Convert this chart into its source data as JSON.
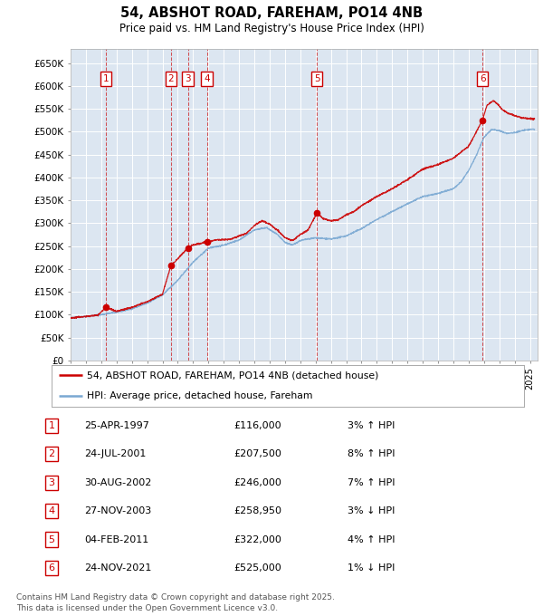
{
  "title": "54, ABSHOT ROAD, FAREHAM, PO14 4NB",
  "subtitle": "Price paid vs. HM Land Registry's House Price Index (HPI)",
  "ylabel_ticks": [
    "£0",
    "£50K",
    "£100K",
    "£150K",
    "£200K",
    "£250K",
    "£300K",
    "£350K",
    "£400K",
    "£450K",
    "£500K",
    "£550K",
    "£600K",
    "£650K"
  ],
  "ytick_values": [
    0,
    50000,
    100000,
    150000,
    200000,
    250000,
    300000,
    350000,
    400000,
    450000,
    500000,
    550000,
    600000,
    650000
  ],
  "ylim": [
    0,
    680000
  ],
  "xlim_start": 1995.0,
  "xlim_end": 2025.5,
  "background_color": "#dce6f1",
  "grid_color": "#ffffff",
  "sale_points": [
    {
      "num": 1,
      "year": 1997.31,
      "price": 116000,
      "label": "25-APR-1997",
      "amount": "£116,000",
      "hpi": "3% ↑ HPI"
    },
    {
      "num": 2,
      "year": 2001.56,
      "price": 207500,
      "label": "24-JUL-2001",
      "amount": "£207,500",
      "hpi": "8% ↑ HPI"
    },
    {
      "num": 3,
      "year": 2002.66,
      "price": 246000,
      "label": "30-AUG-2002",
      "amount": "£246,000",
      "hpi": "7% ↑ HPI"
    },
    {
      "num": 4,
      "year": 2003.9,
      "price": 258950,
      "label": "27-NOV-2003",
      "amount": "£258,950",
      "hpi": "3% ↓ HPI"
    },
    {
      "num": 5,
      "year": 2011.09,
      "price": 322000,
      "label": "04-FEB-2011",
      "amount": "£322,000",
      "hpi": "4% ↑ HPI"
    },
    {
      "num": 6,
      "year": 2021.9,
      "price": 525000,
      "label": "24-NOV-2021",
      "amount": "£525,000",
      "hpi": "1% ↓ HPI"
    }
  ],
  "legend_line1": "54, ABSHOT ROAD, FAREHAM, PO14 4NB (detached house)",
  "legend_line2": "HPI: Average price, detached house, Fareham",
  "footer_line1": "Contains HM Land Registry data © Crown copyright and database right 2025.",
  "footer_line2": "This data is licensed under the Open Government Licence v3.0.",
  "red_color": "#cc0000",
  "blue_color": "#7aa8d2",
  "box_color": "#cc0000"
}
